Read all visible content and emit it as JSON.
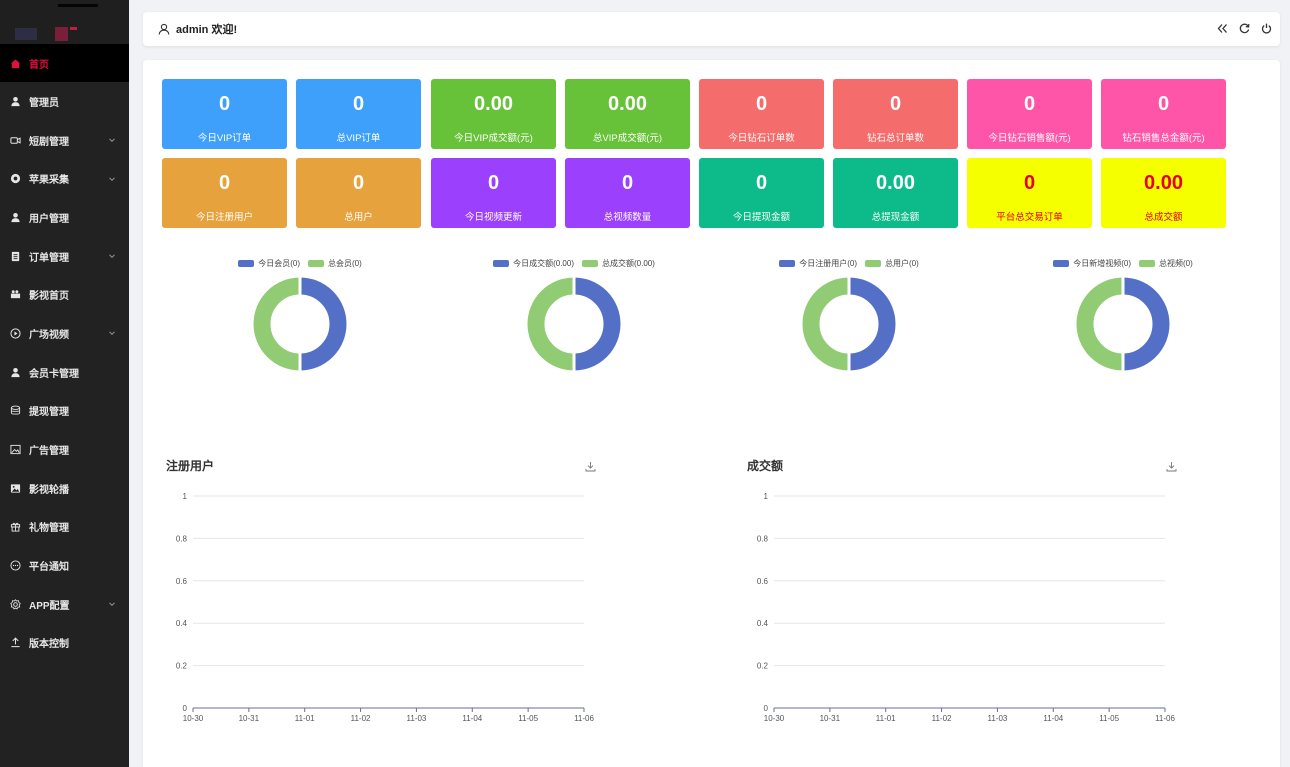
{
  "sidebar": {
    "items": [
      {
        "label": "首页",
        "icon": "home-icon",
        "active": true,
        "expandable": false
      },
      {
        "label": "管理员",
        "icon": "user-icon",
        "active": false,
        "expandable": false
      },
      {
        "label": "短剧管理",
        "icon": "video-camera-icon",
        "active": false,
        "expandable": true
      },
      {
        "label": "苹果采集",
        "icon": "collect-circle-icon",
        "active": false,
        "expandable": true
      },
      {
        "label": "用户管理",
        "icon": "user-icon",
        "active": false,
        "expandable": false
      },
      {
        "label": "订单管理",
        "icon": "document-icon",
        "active": false,
        "expandable": true
      },
      {
        "label": "影视首页",
        "icon": "film-icon",
        "active": false,
        "expandable": false
      },
      {
        "label": "广场视频",
        "icon": "play-circle-icon",
        "active": false,
        "expandable": true
      },
      {
        "label": "会员卡管理",
        "icon": "user-icon",
        "active": false,
        "expandable": false
      },
      {
        "label": "提现管理",
        "icon": "database-icon",
        "active": false,
        "expandable": false
      },
      {
        "label": "广告管理",
        "icon": "image-frame-icon",
        "active": false,
        "expandable": false
      },
      {
        "label": "影视轮播",
        "icon": "picture-icon",
        "active": false,
        "expandable": false
      },
      {
        "label": "礼物管理",
        "icon": "gift-icon",
        "active": false,
        "expandable": false
      },
      {
        "label": "平台通知",
        "icon": "chat-bubble-icon",
        "active": false,
        "expandable": false
      },
      {
        "label": "APP配置",
        "icon": "gear-icon",
        "active": false,
        "expandable": true
      },
      {
        "label": "版本控制",
        "icon": "upload-icon",
        "active": false,
        "expandable": false
      }
    ]
  },
  "header": {
    "welcome": "admin 欢迎!",
    "icons": [
      "collapse-icon",
      "refresh-icon",
      "power-icon"
    ]
  },
  "cards": [
    {
      "value": "0",
      "label": "今日VIP订单",
      "color": "#3fa0fc"
    },
    {
      "value": "0",
      "label": "总VIP订单",
      "color": "#3fa0fc"
    },
    {
      "value": "0.00",
      "label": "今日VIP成交额(元)",
      "color": "#67c23a"
    },
    {
      "value": "0.00",
      "label": "总VIP成交额(元)",
      "color": "#67c23a"
    },
    {
      "value": "0",
      "label": "今日钻石订单数",
      "color": "#f56c6c"
    },
    {
      "value": "0",
      "label": "钻石总订单数",
      "color": "#f56c6c"
    },
    {
      "value": "0",
      "label": "今日钻石销售额(元)",
      "color": "#ff55a8"
    },
    {
      "value": "0",
      "label": "钻石销售总金额(元)",
      "color": "#ff55a8"
    },
    {
      "value": "0",
      "label": "今日注册用户",
      "color": "#e6a23c"
    },
    {
      "value": "0",
      "label": "总用户",
      "color": "#e6a23c"
    },
    {
      "value": "0",
      "label": "今日视频更新",
      "color": "#9b40fd"
    },
    {
      "value": "0",
      "label": "总视频数量",
      "color": "#9b40fd"
    },
    {
      "value": "0",
      "label": "今日提现金额",
      "color": "#0dbb8a"
    },
    {
      "value": "0.00",
      "label": "总提现金额",
      "color": "#0dbb8a"
    },
    {
      "value": "0",
      "label": "平台总交易订单",
      "color": "#f5ff00"
    },
    {
      "value": "0.00",
      "label": "总成交额",
      "color": "#f5ff00"
    }
  ],
  "donuts": [
    {
      "legend": [
        "今日会员(0)",
        "总会员(0)"
      ],
      "values": [
        0,
        0
      ]
    },
    {
      "legend": [
        "今日成交额(0.00)",
        "总成交额(0.00)"
      ],
      "values": [
        0,
        0
      ]
    },
    {
      "legend": [
        "今日注册用户(0)",
        "总用户(0)"
      ],
      "values": [
        0,
        0
      ]
    },
    {
      "legend": [
        "今日新增视频(0)",
        "总视频(0)"
      ],
      "values": [
        0,
        0
      ]
    }
  ],
  "donut_colors": [
    "#5470c6",
    "#91cc75"
  ],
  "chart_data": [
    {
      "type": "line",
      "title": "注册用户",
      "categories": [
        "10-30",
        "10-31",
        "11-01",
        "11-02",
        "11-03",
        "11-04",
        "11-05",
        "11-06"
      ],
      "series": [
        {
          "values": [
            0,
            0,
            0,
            0,
            0,
            0,
            0,
            0
          ]
        }
      ],
      "ylim": [
        0,
        1
      ],
      "yticks": [
        "0",
        "0.2",
        "0.4",
        "0.6",
        "0.8",
        "1"
      ],
      "grid": true,
      "toolbox": "download-icon"
    },
    {
      "type": "line",
      "title": "成交额",
      "categories": [
        "10-30",
        "10-31",
        "11-01",
        "11-02",
        "11-03",
        "11-04",
        "11-05",
        "11-06"
      ],
      "series": [
        {
          "values": [
            0,
            0,
            0,
            0,
            0,
            0,
            0,
            0
          ]
        }
      ],
      "ylim": [
        0,
        1
      ],
      "yticks": [
        "0",
        "0.2",
        "0.4",
        "0.6",
        "0.8",
        "1"
      ],
      "grid": true,
      "toolbox": "download-icon"
    }
  ]
}
